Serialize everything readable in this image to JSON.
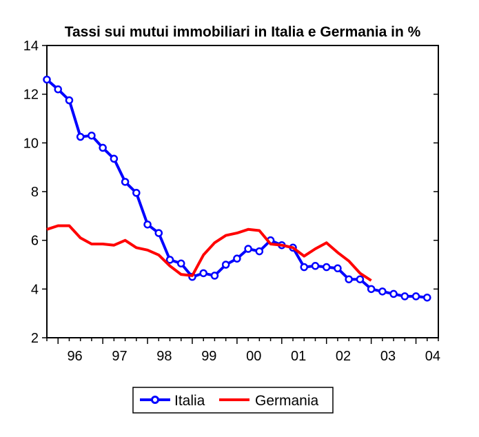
{
  "chart_data": {
    "type": "line",
    "title": "Tassi sui mutui immobiliari in Italia e Germania in %",
    "xlabel": "",
    "ylabel": "",
    "ylim": [
      2,
      14
    ],
    "yticks": [
      "2",
      "4",
      "6",
      "8",
      "10",
      "12",
      "14"
    ],
    "xlim": [
      "1995-Q4",
      "2004-Q3"
    ],
    "xtick_labels": [
      "96",
      "97",
      "98",
      "99",
      "00",
      "01",
      "02",
      "03",
      "04"
    ],
    "grid": false,
    "legend_position": "bottom",
    "series": [
      {
        "name": "Italia",
        "color": "#0000ff",
        "marker": "circle",
        "x": [
          "1995-Q4",
          "1996-Q1",
          "1996-Q2",
          "1996-Q3",
          "1996-Q4",
          "1997-Q1",
          "1997-Q2",
          "1997-Q3",
          "1997-Q4",
          "1998-Q1",
          "1998-Q2",
          "1998-Q3",
          "1998-Q4",
          "1999-Q1",
          "1999-Q2",
          "1999-Q3",
          "1999-Q4",
          "2000-Q1",
          "2000-Q2",
          "2000-Q3",
          "2000-Q4",
          "2001-Q1",
          "2001-Q2",
          "2001-Q3",
          "2001-Q4",
          "2002-Q1",
          "2002-Q2",
          "2002-Q3",
          "2002-Q4",
          "2003-Q1",
          "2003-Q2",
          "2003-Q3",
          "2003-Q4",
          "2004-Q1",
          "2004-Q2"
        ],
        "values": [
          12.6,
          12.2,
          11.75,
          10.25,
          10.3,
          9.8,
          9.35,
          8.4,
          7.95,
          6.65,
          6.3,
          5.2,
          5.05,
          4.5,
          4.65,
          4.55,
          5.0,
          5.25,
          5.65,
          5.55,
          6.0,
          5.8,
          5.7,
          4.9,
          4.95,
          4.9,
          4.85,
          4.4,
          4.4,
          4.0,
          3.9,
          3.8,
          3.7,
          3.7,
          3.65
        ]
      },
      {
        "name": "Germania",
        "color": "#ff0000",
        "marker": "none",
        "x": [
          "1995-Q4",
          "1996-Q1",
          "1996-Q2",
          "1996-Q3",
          "1996-Q4",
          "1997-Q1",
          "1997-Q2",
          "1997-Q3",
          "1997-Q4",
          "1998-Q1",
          "1998-Q2",
          "1998-Q3",
          "1998-Q4",
          "1999-Q1",
          "1999-Q2",
          "1999-Q3",
          "1999-Q4",
          "2000-Q1",
          "2000-Q2",
          "2000-Q3",
          "2000-Q4",
          "2001-Q1",
          "2001-Q2",
          "2001-Q3",
          "2001-Q4",
          "2002-Q1",
          "2002-Q2",
          "2002-Q3",
          "2002-Q4",
          "2003-Q1"
        ],
        "values": [
          6.45,
          6.6,
          6.6,
          6.1,
          5.85,
          5.85,
          5.8,
          6.0,
          5.7,
          5.6,
          5.4,
          4.95,
          4.6,
          4.55,
          5.4,
          5.9,
          6.2,
          6.3,
          6.45,
          6.4,
          5.85,
          5.8,
          5.7,
          5.35,
          5.65,
          5.9,
          5.5,
          5.15,
          4.65,
          4.35
        ]
      }
    ]
  }
}
